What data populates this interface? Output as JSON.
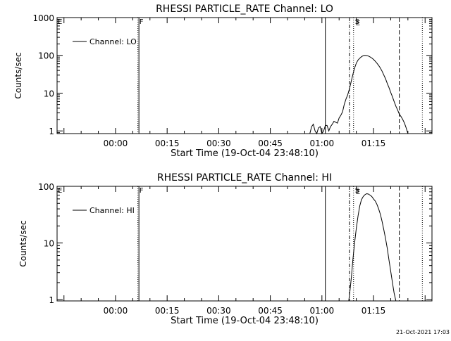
{
  "footer": {
    "timestamp": "21-Oct-2021 17:03"
  },
  "chart_data": [
    {
      "type": "line",
      "title": "RHESSI PARTICLE_RATE Channel: LO",
      "xlabel": "Start Time (19-Oct-04 23:48:10)",
      "ylabel": "Counts/sec",
      "yscale": "log",
      "xlim": [
        -17,
        92
      ],
      "ylim": [
        0.85,
        1000
      ],
      "xtick_values": [
        0,
        15,
        30,
        45,
        60,
        75
      ],
      "xtick_labels": [
        "00:00",
        "00:15",
        "00:30",
        "00:45",
        "01:00",
        "01:15"
      ],
      "ytick_values": [
        1,
        10,
        100,
        1000
      ],
      "ytick_labels": [
        "1",
        "10",
        "100",
        "1000"
      ],
      "legend": {
        "placement": "top-left",
        "entries": [
          "Channel: LO"
        ]
      },
      "markers": [
        {
          "x": 6.5,
          "style": "dotted",
          "label": "F"
        },
        {
          "x": 6.8,
          "style": "solid",
          "label": ""
        },
        {
          "x": 61,
          "style": "solid",
          "label": ""
        },
        {
          "x": 68,
          "style": "dashdot",
          "label": ""
        },
        {
          "x": 69.2,
          "style": "dotted",
          "label": "S"
        },
        {
          "x": 82.5,
          "style": "dashed",
          "label": ""
        },
        {
          "x": 89.2,
          "style": "dotted",
          "label": ""
        }
      ],
      "edge_labels": [
        "E",
        "E"
      ],
      "series": [
        {
          "name": "Channel: LO",
          "x": [
            56.5,
            57,
            57.5,
            58,
            58.5,
            59,
            59.5,
            60,
            60.5,
            61,
            61.5,
            62,
            62.5,
            63,
            63.5,
            64,
            64.5,
            65,
            65.5,
            66,
            66.5,
            67,
            67.5,
            68,
            68.5,
            69,
            69.5,
            70,
            70.5,
            71,
            71.5,
            72,
            72.5,
            73,
            73.5,
            74,
            74.5,
            75,
            75.5,
            76,
            76.5,
            77,
            77.5,
            78,
            78.5,
            79,
            79.5,
            80,
            80.5,
            81,
            81.5,
            82,
            82.5,
            83,
            83.5,
            84,
            84.5,
            85
          ],
          "y": [
            0.8,
            1.3,
            1.5,
            1.0,
            0.8,
            1.2,
            1.3,
            0.8,
            1.0,
            1.4,
            1.4,
            1.0,
            1.3,
            1.5,
            1.8,
            1.7,
            1.6,
            2.2,
            2.6,
            3.2,
            5,
            7,
            9,
            13,
            20,
            31,
            46,
            62,
            75,
            84,
            92,
            98,
            100,
            99,
            96,
            91,
            85,
            78,
            70,
            62,
            54,
            46,
            38,
            30,
            24,
            18,
            14,
            10.5,
            8,
            6,
            4.5,
            3.6,
            2.8,
            2.4,
            2.0,
            1.6,
            1.2,
            0.8
          ]
        }
      ]
    },
    {
      "type": "line",
      "title": "RHESSI PARTICLE_RATE Channel: HI",
      "xlabel": "Start Time (19-Oct-04 23:48:10)",
      "ylabel": "Counts/sec",
      "yscale": "log",
      "xlim": [
        -17,
        92
      ],
      "ylim": [
        0.95,
        100
      ],
      "xtick_values": [
        0,
        15,
        30,
        45,
        60,
        75
      ],
      "xtick_labels": [
        "00:00",
        "00:15",
        "00:30",
        "00:45",
        "01:00",
        "01:15"
      ],
      "ytick_values": [
        1,
        10,
        100
      ],
      "ytick_labels": [
        "1",
        "10",
        "100"
      ],
      "legend": {
        "placement": "top-left",
        "entries": [
          "Channel: HI"
        ]
      },
      "markers": [
        {
          "x": 6.5,
          "style": "dotted",
          "label": "F"
        },
        {
          "x": 6.8,
          "style": "solid",
          "label": ""
        },
        {
          "x": 61,
          "style": "solid",
          "label": ""
        },
        {
          "x": 68,
          "style": "dashdot",
          "label": ""
        },
        {
          "x": 69.2,
          "style": "dotted",
          "label": "S"
        },
        {
          "x": 82.5,
          "style": "dashed",
          "label": ""
        },
        {
          "x": 89.2,
          "style": "dotted",
          "label": ""
        }
      ],
      "edge_labels": [
        "E",
        "E"
      ],
      "series": [
        {
          "name": "Channel: HI",
          "x": [
            67.8,
            68.2,
            68.6,
            69,
            69.5,
            70,
            70.5,
            71,
            71.5,
            72,
            72.5,
            73,
            73.5,
            74,
            74.5,
            75,
            75.5,
            76,
            76.5,
            77,
            77.5,
            78,
            78.5,
            79,
            79.5,
            80,
            80.5,
            81,
            81.5
          ],
          "y": [
            0.9,
            1.5,
            2.6,
            5,
            10,
            18,
            30,
            45,
            58,
            66,
            71,
            74,
            73,
            70,
            66,
            60,
            55,
            48,
            40,
            32,
            24,
            17,
            12,
            8,
            5,
            3.2,
            2.0,
            1.3,
            0.9
          ]
        }
      ]
    }
  ]
}
